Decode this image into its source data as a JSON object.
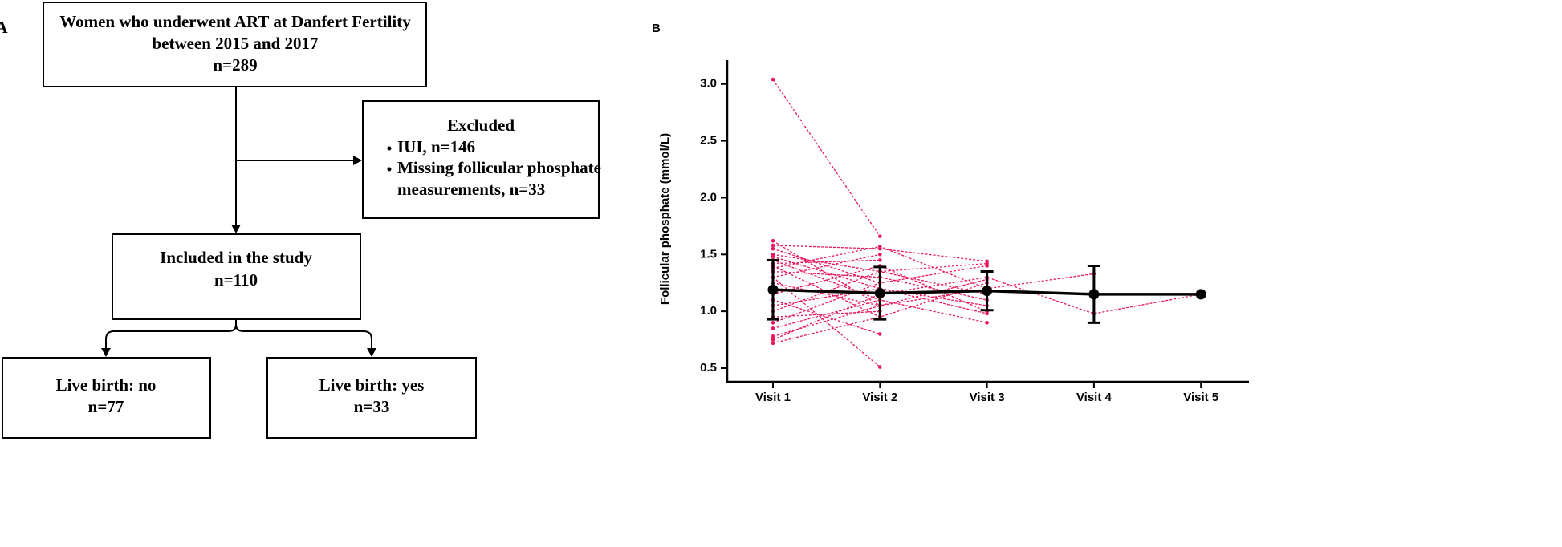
{
  "panel_a": {
    "label": "A",
    "nodes": [
      {
        "lines": [
          "Women who underwent ART at Danfert Fertility",
          "between 2015 and 2017",
          "n=289"
        ]
      },
      {
        "title": "Excluded",
        "items": [
          [
            "IUI, n=146"
          ],
          [
            "Missing follicular phosphate",
            "measurements, n=33"
          ]
        ]
      },
      {
        "lines": [
          "Included in the study",
          "n=110"
        ]
      },
      {
        "lines": [
          "Live birth: no",
          "n=77"
        ]
      },
      {
        "lines": [
          "Live birth: yes",
          "n=33"
        ]
      }
    ]
  },
  "chart_data": {
    "type": "line",
    "panel_label": "B",
    "y_label": "Follicular phosphate (mmol/L)",
    "categories": [
      "Visit 1",
      "Visit 2",
      "Visit 3",
      "Visit 4",
      "Visit 5"
    ],
    "ylim": [
      0.38,
      3.21
    ],
    "yticks": [
      0.5,
      {
        "value": 1,
        "label": "1.0"
      },
      1.5,
      {
        "value": 2,
        "label": "2.0"
      },
      2.5,
      {
        "value": 3,
        "label": "3.0"
      }
    ],
    "grid": false,
    "individual_color": "#e8185a",
    "individual": [
      {
        "values": [
          3.04,
          1.66,
          null,
          null,
          null
        ]
      },
      {
        "values": [
          1.3,
          0.51,
          null,
          null,
          null
        ]
      },
      {
        "values": [
          1.62,
          1.05,
          null,
          null,
          null
        ]
      },
      {
        "values": [
          1.58,
          1.55,
          1.44,
          null,
          null
        ]
      },
      {
        "values": [
          1.55,
          1.25,
          null,
          null,
          null
        ]
      },
      {
        "values": [
          1.5,
          1.35,
          1.42,
          null,
          null
        ]
      },
      {
        "values": [
          1.45,
          1.1,
          0.9,
          null,
          null
        ]
      },
      {
        "values": [
          1.42,
          1.45,
          null,
          null,
          null
        ]
      },
      {
        "values": [
          1.4,
          0.95,
          1.25,
          null,
          null
        ]
      },
      {
        "values": [
          1.35,
          1.3,
          1.1,
          null,
          null
        ]
      },
      {
        "values": [
          1.3,
          1.5,
          null,
          null,
          null
        ]
      },
      {
        "values": [
          1.25,
          1.05,
          1.2,
          1.33,
          null
        ]
      },
      {
        "values": [
          1.2,
          1.15,
          1.3,
          0.98,
          1.15
        ]
      },
      {
        "values": [
          1.15,
          1.4,
          1.0,
          null,
          null
        ]
      },
      {
        "values": [
          1.1,
          0.8,
          null,
          null,
          null
        ]
      },
      {
        "values": [
          1.05,
          1.2,
          1.05,
          null,
          null
        ]
      },
      {
        "values": [
          1.0,
          1.35,
          1.15,
          null,
          null
        ]
      },
      {
        "values": [
          0.95,
          1.0,
          null,
          null,
          null
        ]
      },
      {
        "values": [
          0.9,
          1.25,
          1.4,
          null,
          null
        ]
      },
      {
        "values": [
          0.85,
          1.1,
          null,
          null,
          null
        ]
      },
      {
        "values": [
          0.78,
          1.05,
          1.28,
          null,
          null
        ]
      },
      {
        "values": [
          0.72,
          0.95,
          null,
          null,
          null
        ]
      },
      {
        "values": [
          0.75,
          1.15,
          null,
          null,
          null
        ]
      },
      {
        "values": [
          1.48,
          1.2,
          0.98,
          null,
          null
        ]
      },
      {
        "values": [
          1.38,
          1.57,
          1.2,
          null,
          null
        ]
      }
    ],
    "mean": {
      "color": "#000000",
      "values": [
        1.19,
        1.16,
        1.18,
        1.15,
        1.15
      ],
      "errors": [
        0.26,
        0.23,
        0.17,
        0.25,
        null
      ]
    }
  }
}
